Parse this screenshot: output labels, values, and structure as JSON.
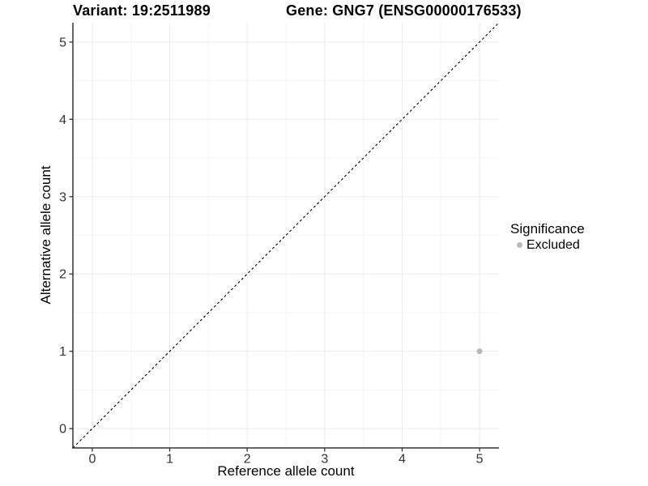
{
  "titles": {
    "left": "Variant: 19:2511989",
    "right": "Gene: GNG7 (ENSG00000176533)"
  },
  "axes": {
    "x_label": "Reference allele count",
    "y_label": "Alternative allele count"
  },
  "legend": {
    "title": "Significance",
    "entries": [
      {
        "label": "Excluded",
        "color": "#b8b8b8"
      }
    ]
  },
  "chart_data": {
    "type": "scatter",
    "title": "Variant: 19:2511989   Gene: GNG7 (ENSG00000176533)",
    "xlabel": "Reference allele count",
    "ylabel": "Alternative allele count",
    "xlim": [
      -0.25,
      5.25
    ],
    "ylim": [
      -0.25,
      5.25
    ],
    "x_ticks": [
      0,
      1,
      2,
      3,
      4,
      5
    ],
    "y_ticks": [
      0,
      1,
      2,
      3,
      4,
      5
    ],
    "x_minor": [
      0.5,
      1.5,
      2.5,
      3.5,
      4.5
    ],
    "y_minor": [
      0.5,
      1.5,
      2.5,
      3.5,
      4.5
    ],
    "grid": "major+minor",
    "legend_position": "right",
    "identity_line": {
      "type": "abline",
      "slope": 1,
      "intercept": 0,
      "style": "dashed",
      "color": "#000000"
    },
    "series": [
      {
        "name": "Excluded",
        "color": "#b8b8b8",
        "points": [
          {
            "x": 5,
            "y": 1
          }
        ]
      }
    ],
    "style": {
      "major_grid": "#ebebeb",
      "minor_grid": "#f5f5f5",
      "axis_line": "#333333",
      "tick_text": "#333333",
      "point_radius": 3.5
    }
  }
}
